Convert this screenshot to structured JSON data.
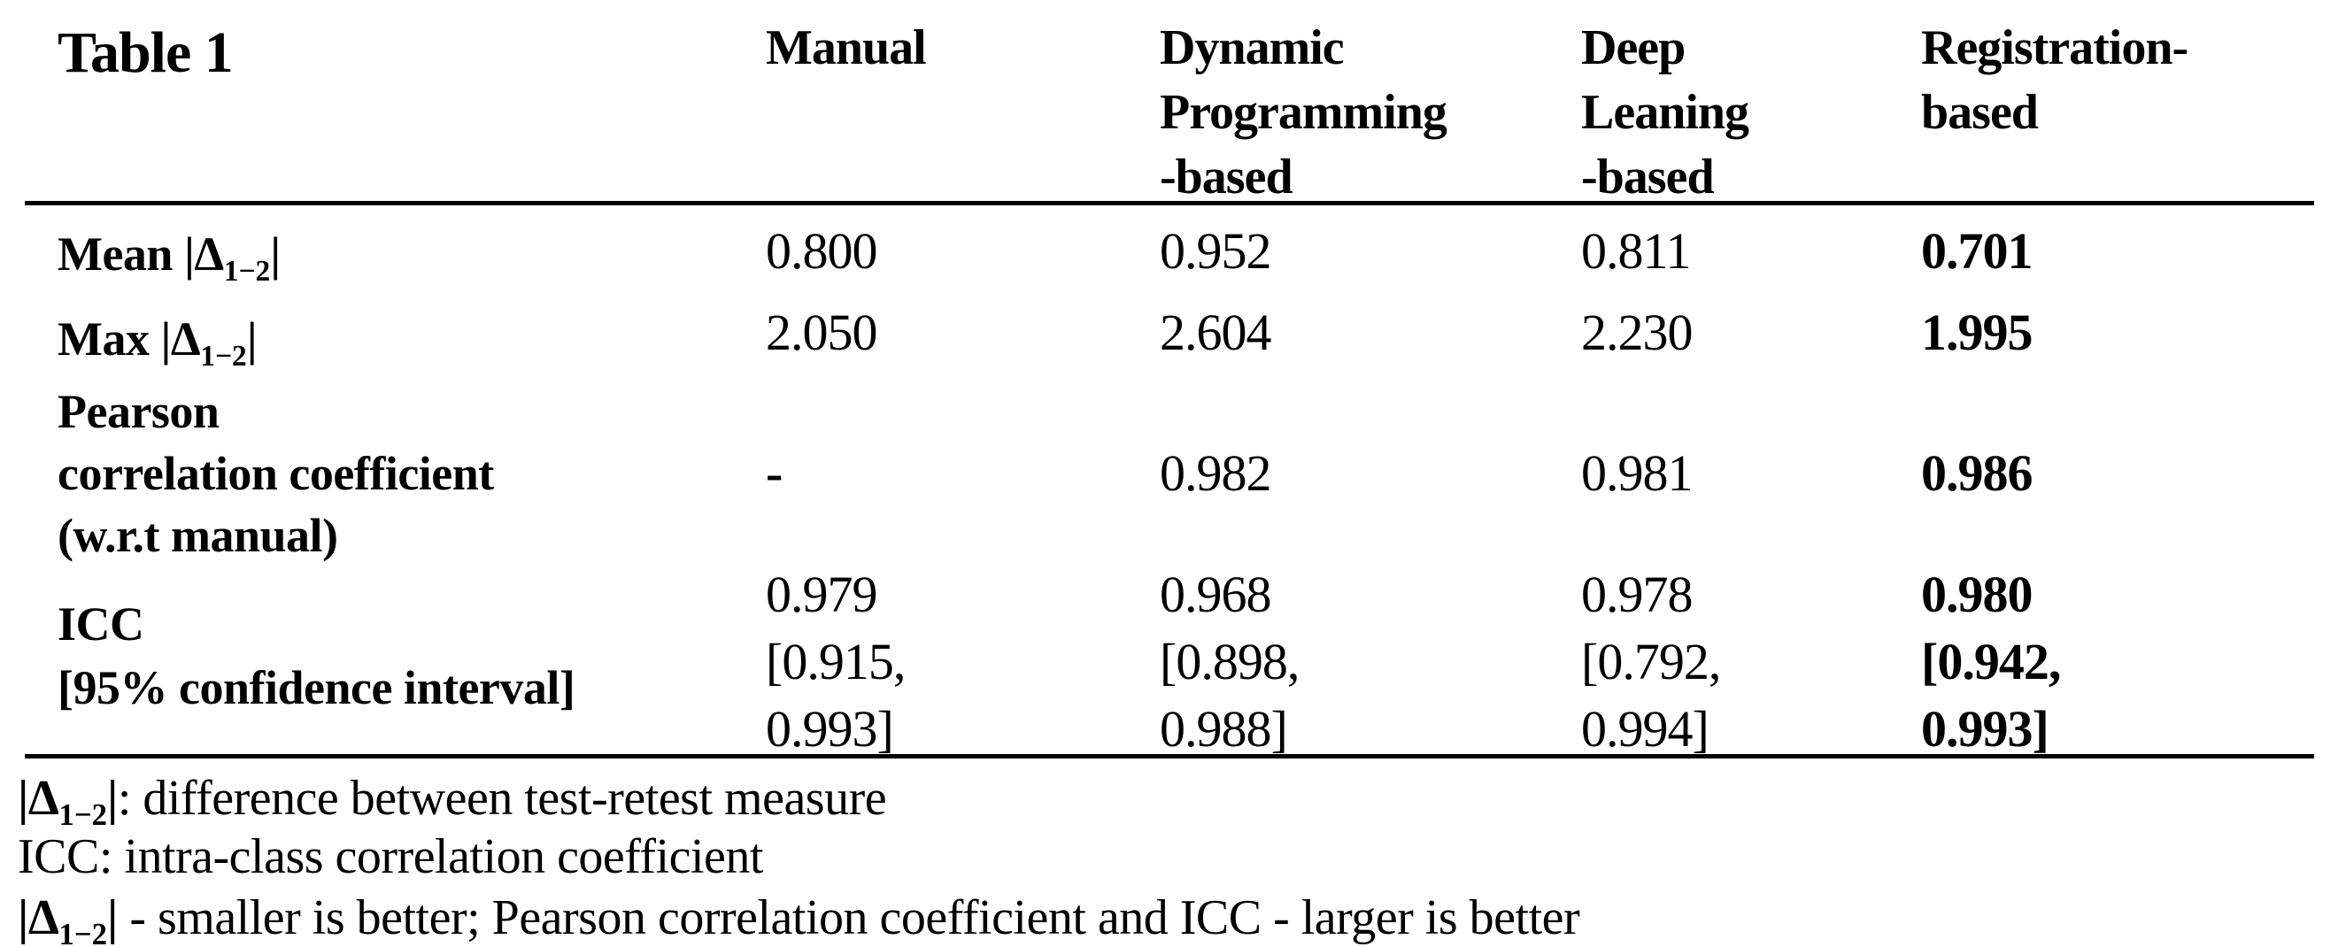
{
  "page": {
    "background": "#ffffff",
    "text_color": "#000000"
  },
  "table": {
    "title": "Table 1",
    "columns": [
      "Manual",
      "Dynamic\nProgramming\n-based",
      "Deep\nLeaning\n-based",
      "Registration-\nbased"
    ],
    "rows": [
      {
        "label_prefix": "Mean ",
        "math": {
          "open": "|Δ",
          "sub": "1−2",
          "close": "|"
        },
        "values": [
          "0.800",
          "0.952",
          "0.811",
          "0.701"
        ]
      },
      {
        "label_prefix": "Max ",
        "math": {
          "open": "|Δ",
          "sub": "1−2",
          "close": "|"
        },
        "values": [
          "2.050",
          "2.604",
          "2.230",
          "1.995"
        ]
      },
      {
        "label": "Pearson\ncorrelation coefficient\n(w.r.t manual)",
        "values": [
          "-",
          "0.982",
          "0.981",
          "0.986"
        ]
      },
      {
        "label": "ICC\n[95% confidence interval]",
        "values": [
          "0.979\n[0.915,\n0.993]",
          "0.968\n[0.898,\n0.988]",
          "0.978\n[0.792,\n0.994]",
          "0.980\n[0.942,\n0.993]"
        ]
      }
    ]
  },
  "footnotes": [
    {
      "math": {
        "open": "|Δ",
        "sub": "1−2",
        "close": "|"
      },
      "text": ": difference between test-retest measure"
    },
    {
      "text": "ICC: intra-class correlation coefficient"
    },
    {
      "math": {
        "open": "|Δ",
        "sub": "1−2",
        "close": "|"
      },
      "text": " - smaller is better; Pearson correlation coefficient and ICC - larger is better"
    }
  ]
}
